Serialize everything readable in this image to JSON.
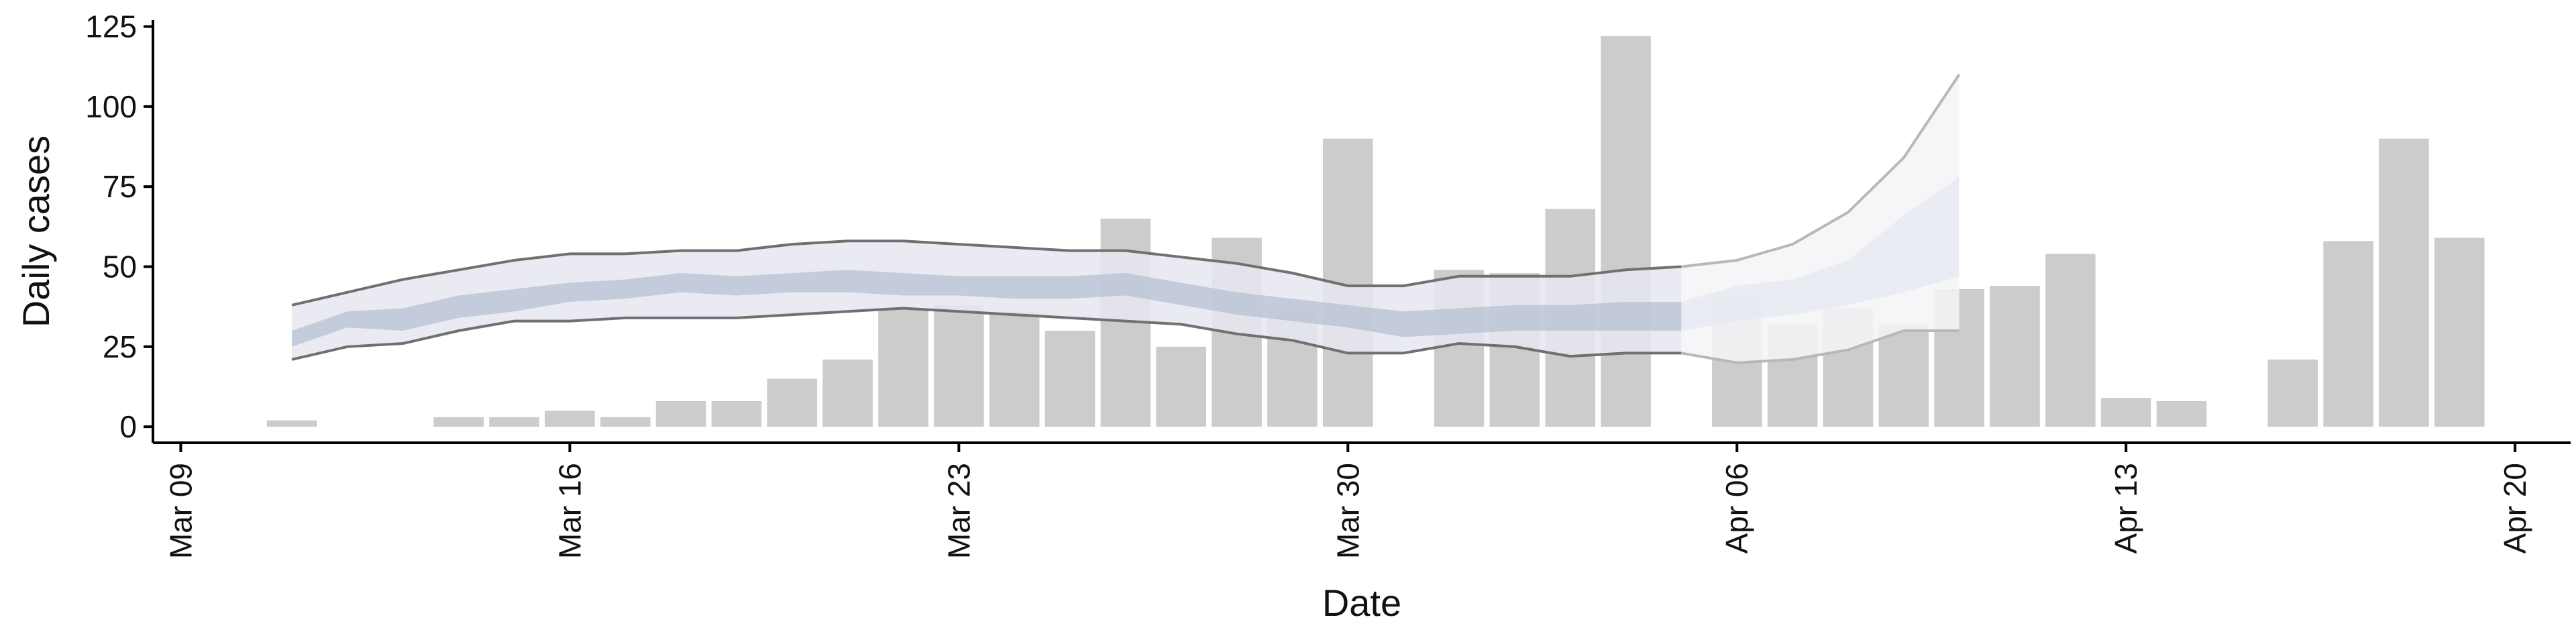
{
  "chart_data": {
    "type": "bar",
    "xlabel": "Date",
    "ylabel": "Daily cases",
    "ylim": [
      -5,
      127
    ],
    "yticks": [
      0,
      25,
      50,
      75,
      100,
      125
    ],
    "xlim": [
      "2020-03-08T12:00",
      "2020-04-21"
    ],
    "xticks": [
      {
        "date": "2020-03-09",
        "label": "Mar 09"
      },
      {
        "date": "2020-03-16",
        "label": "Mar 16"
      },
      {
        "date": "2020-03-23",
        "label": "Mar 23"
      },
      {
        "date": "2020-03-30",
        "label": "Mar 30"
      },
      {
        "date": "2020-04-06",
        "label": "Apr 06"
      },
      {
        "date": "2020-04-13",
        "label": "Apr 13"
      },
      {
        "date": "2020-04-20",
        "label": "Apr 20"
      }
    ],
    "grid": false,
    "bars": {
      "dates": [
        "2020-03-11",
        "2020-03-14",
        "2020-03-15",
        "2020-03-16",
        "2020-03-17",
        "2020-03-18",
        "2020-03-19",
        "2020-03-20",
        "2020-03-21",
        "2020-03-22",
        "2020-03-23",
        "2020-03-24",
        "2020-03-25",
        "2020-03-26",
        "2020-03-27",
        "2020-03-28",
        "2020-03-29",
        "2020-03-30",
        "2020-04-01",
        "2020-04-02",
        "2020-04-03",
        "2020-04-04",
        "2020-04-06",
        "2020-04-07",
        "2020-04-08",
        "2020-04-09",
        "2020-04-10",
        "2020-04-11",
        "2020-04-12",
        "2020-04-13",
        "2020-04-14",
        "2020-04-16",
        "2020-04-17",
        "2020-04-18",
        "2020-04-19"
      ],
      "values": [
        2,
        3,
        3,
        5,
        3,
        8,
        8,
        15,
        21,
        37,
        38,
        36,
        30,
        65,
        25,
        59,
        36,
        90,
        49,
        48,
        68,
        122,
        40,
        32,
        37,
        32,
        43,
        44,
        54,
        9,
        8,
        21,
        58,
        90,
        59
      ],
      "color": "#cccccc"
    },
    "series": [
      {
        "dates": [
          "2020-03-11",
          "2020-03-12",
          "2020-03-13",
          "2020-03-14",
          "2020-03-15",
          "2020-03-16",
          "2020-03-17",
          "2020-03-18",
          "2020-03-19",
          "2020-03-20",
          "2020-03-21",
          "2020-03-22",
          "2020-03-23",
          "2020-03-24",
          "2020-03-25",
          "2020-03-26",
          "2020-03-27",
          "2020-03-28",
          "2020-03-29",
          "2020-03-30",
          "2020-03-31",
          "2020-04-01",
          "2020-04-02",
          "2020-04-03",
          "2020-04-04",
          "2020-04-05"
        ],
        "upper": [
          38,
          42,
          46,
          49,
          52,
          54,
          54,
          55,
          55,
          57,
          58,
          58,
          57,
          56,
          55,
          55,
          53,
          51,
          48,
          44,
          44,
          47,
          47,
          47,
          49,
          50
        ],
        "inner_upper": [
          30,
          36,
          37,
          41,
          43,
          45,
          46,
          48,
          47,
          48,
          49,
          48,
          47,
          47,
          47,
          48,
          45,
          42,
          40,
          38,
          36,
          37,
          38,
          38,
          39,
          39
        ],
        "inner_lower": [
          25,
          31,
          30,
          34,
          36,
          39,
          40,
          42,
          41,
          42,
          42,
          41,
          41,
          40,
          40,
          41,
          38,
          35,
          33,
          31,
          28,
          29,
          30,
          30,
          30,
          30
        ],
        "lower": [
          21,
          25,
          26,
          30,
          33,
          33,
          34,
          34,
          34,
          35,
          36,
          37,
          36,
          35,
          34,
          33,
          32,
          29,
          27,
          23,
          23,
          26,
          25,
          22,
          23,
          23
        ],
        "band_outer_color": "#e6e8f0",
        "band_inner_color": "#b4bfd3",
        "line_color": "#707070"
      },
      {
        "dates": [
          "2020-04-05",
          "2020-04-06",
          "2020-04-07",
          "2020-04-08",
          "2020-04-09",
          "2020-04-10"
        ],
        "upper": [
          50,
          52,
          57,
          67,
          84,
          110
        ],
        "inner_upper": [
          39,
          44,
          46,
          52,
          66,
          78
        ],
        "inner_lower": [
          30,
          33,
          35,
          38,
          42,
          47
        ],
        "lower": [
          23,
          20,
          21,
          24,
          30,
          30
        ],
        "band_outer_color": "#f4f5f8",
        "band_inner_color": "#e4e8f0",
        "line_color": "#b8b8b8"
      }
    ]
  }
}
